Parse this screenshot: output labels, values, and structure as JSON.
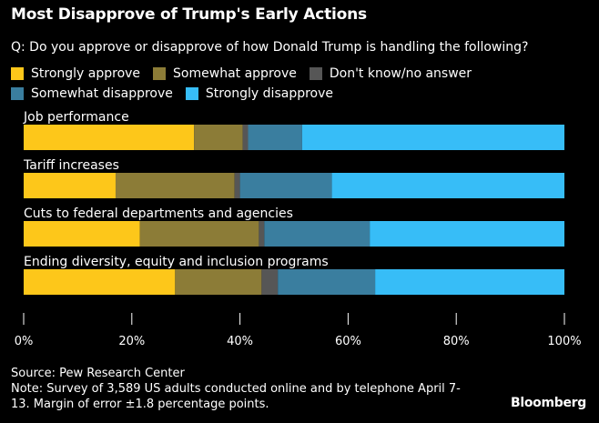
{
  "title": "Most Disapprove of Trump's Early Actions",
  "subtitle": "Q: Do you approve or disapprove of how Donald Trump is handling the following?",
  "legend": [
    {
      "label": "Strongly approve",
      "color": "#FDC71A"
    },
    {
      "label": "Somewhat approve",
      "color": "#8C7C37"
    },
    {
      "label": "Don't know/no answer",
      "color": "#565656"
    },
    {
      "label": "Somewhat disapprove",
      "color": "#3A7E9F"
    },
    {
      "label": "Strongly disapprove",
      "color": "#37BDF7"
    }
  ],
  "chart_data": {
    "type": "bar",
    "orientation": "horizontal",
    "stacked": true,
    "title": "Most Disapprove of Trump's Early Actions",
    "categories": [
      "Job performance",
      "Tariff increases",
      "Cuts to federal departments and agencies",
      "Ending diversity, equity and inclusion programs"
    ],
    "series": [
      {
        "name": "Strongly approve",
        "values": [
          31.5,
          17,
          21.5,
          28
        ]
      },
      {
        "name": "Somewhat approve",
        "values": [
          9,
          22,
          22,
          16
        ]
      },
      {
        "name": "Don't know/no answer",
        "values": [
          1,
          1,
          1,
          3
        ]
      },
      {
        "name": "Somewhat disapprove",
        "values": [
          10,
          17,
          19.5,
          18
        ]
      },
      {
        "name": "Strongly disapprove",
        "values": [
          48.5,
          43,
          36,
          35
        ]
      }
    ],
    "xlim": [
      0,
      100
    ],
    "xticks": [
      "0%",
      "20%",
      "40%",
      "60%",
      "80%",
      "100%"
    ]
  },
  "footer": {
    "source": "Source: Pew Research Center",
    "note_line1": "Note: Survey of 3,589 US adults conducted online and by telephone April 7-",
    "note_line2": "13. Margin of error ±1.8 percentage points."
  },
  "brand": "Bloomberg"
}
